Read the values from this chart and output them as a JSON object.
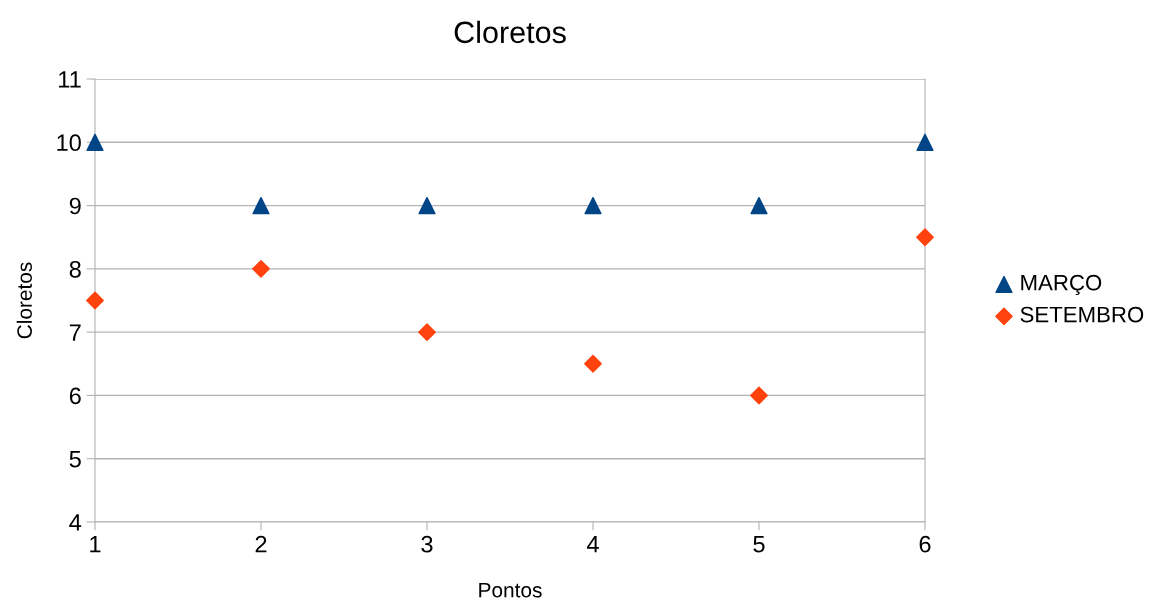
{
  "chart_data": {
    "type": "scatter",
    "title": "Cloretos",
    "xlabel": "Pontos",
    "ylabel": "Cloretos",
    "x": [
      1,
      2,
      3,
      4,
      5,
      6
    ],
    "series": [
      {
        "name": "MARÇO",
        "color": "#004586",
        "marker": "triangle",
        "values": [
          10,
          9,
          9,
          9,
          9,
          10
        ]
      },
      {
        "name": "SETEMBRO",
        "color": "#ff420e",
        "marker": "diamond",
        "values": [
          7.5,
          8,
          7,
          6.5,
          6,
          8.5
        ]
      }
    ],
    "xlim": [
      1,
      6
    ],
    "xticks": [
      1,
      2,
      3,
      4,
      5,
      6
    ],
    "ylim": [
      4,
      11
    ],
    "yticks": [
      4,
      5,
      6,
      7,
      8,
      9,
      10,
      11
    ],
    "grid": "y",
    "legend": "right"
  }
}
